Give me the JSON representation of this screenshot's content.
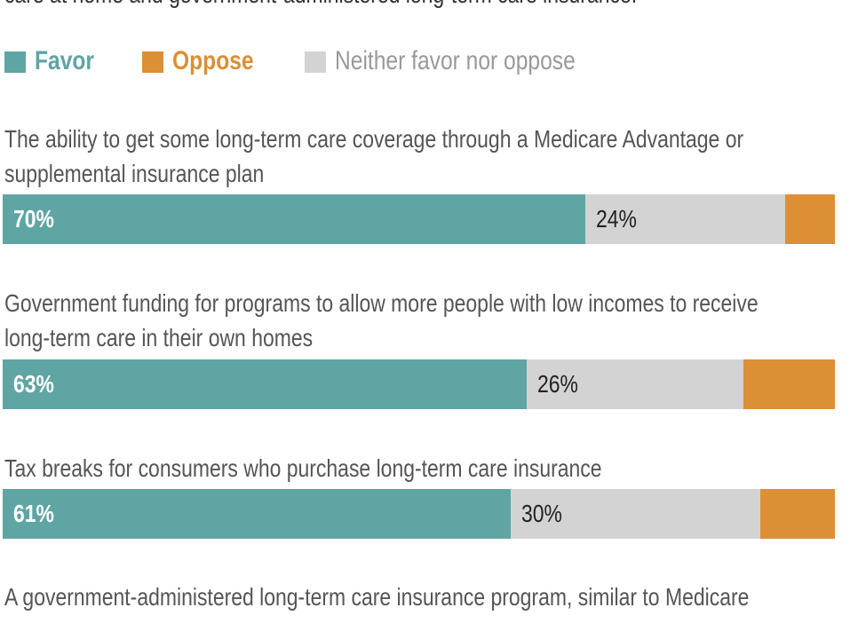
{
  "chart_data": {
    "type": "stacked_bar",
    "orientation": "horizontal",
    "title": "care at home and government-administered long-term care insurance.",
    "categories": [
      "The ability to get some long-term care coverage through a Medicare Advantage or supplemental insurance plan",
      "Government funding for programs to allow more people with low incomes to receive long-term care in their own homes",
      "Tax breaks for consumers who purchase long-term care insurance",
      "A government-administered long-term care insurance program, similar to Medicare"
    ],
    "series": [
      {
        "name": "Favor",
        "color": "#5fa5a3",
        "values": [
          70,
          63,
          61,
          null
        ],
        "value_labels": [
          "70%",
          "63%",
          "61%",
          null
        ]
      },
      {
        "name": "Oppose",
        "color": "#dc8f35",
        "values": [
          6,
          11,
          9,
          null
        ]
      },
      {
        "name": "Neither favor nor oppose",
        "color": "#d3d3d3",
        "values": [
          24,
          26,
          30,
          null
        ],
        "value_labels": [
          "24%",
          "26%",
          "30%",
          null
        ]
      }
    ],
    "stack_order": [
      0,
      2,
      1
    ],
    "xlim": [
      0,
      100
    ]
  }
}
